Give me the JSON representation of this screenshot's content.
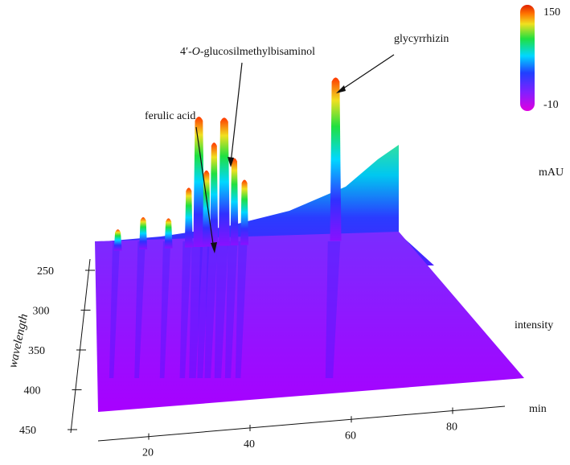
{
  "chart_data": {
    "type": "surface",
    "title": "",
    "xlabel": "min",
    "ylabel": "wavelength",
    "zlabel": "intensity",
    "x_ticks": [
      "20",
      "40",
      "60",
      "80"
    ],
    "y_ticks": [
      "250",
      "300",
      "350",
      "400",
      "450"
    ],
    "colorbar": {
      "unit": "mAU",
      "max_label": "150",
      "min_label": "-10",
      "range": [
        -10,
        150
      ],
      "colors": [
        "#e000e0",
        "#2020ff",
        "#00d0ff",
        "#20e040",
        "#f0e020",
        "#ff7000",
        "#e02000"
      ]
    },
    "annotations": [
      {
        "label": "glycyrrhizin",
        "retention_time": 55,
        "peak_intensity": 150
      },
      {
        "prefix": "4′-",
        "italic": "O",
        "suffix": "-glucosilmethylbisaminol",
        "retention_time": 31,
        "peak_intensity": 95
      },
      {
        "label": "ferulic acid",
        "retention_time": 27,
        "peak_intensity": 40
      }
    ],
    "peaks": [
      {
        "time": 12,
        "intensity": 20
      },
      {
        "time": 17,
        "intensity": 30
      },
      {
        "time": 22,
        "intensity": 28
      },
      {
        "time": 26,
        "intensity": 55
      },
      {
        "time": 28,
        "intensity": 120
      },
      {
        "time": 29.5,
        "intensity": 70
      },
      {
        "time": 31,
        "intensity": 95
      },
      {
        "time": 33,
        "intensity": 118
      },
      {
        "time": 35,
        "intensity": 80
      },
      {
        "time": 37,
        "intensity": 60
      },
      {
        "time": 55,
        "intensity": 150
      }
    ]
  }
}
